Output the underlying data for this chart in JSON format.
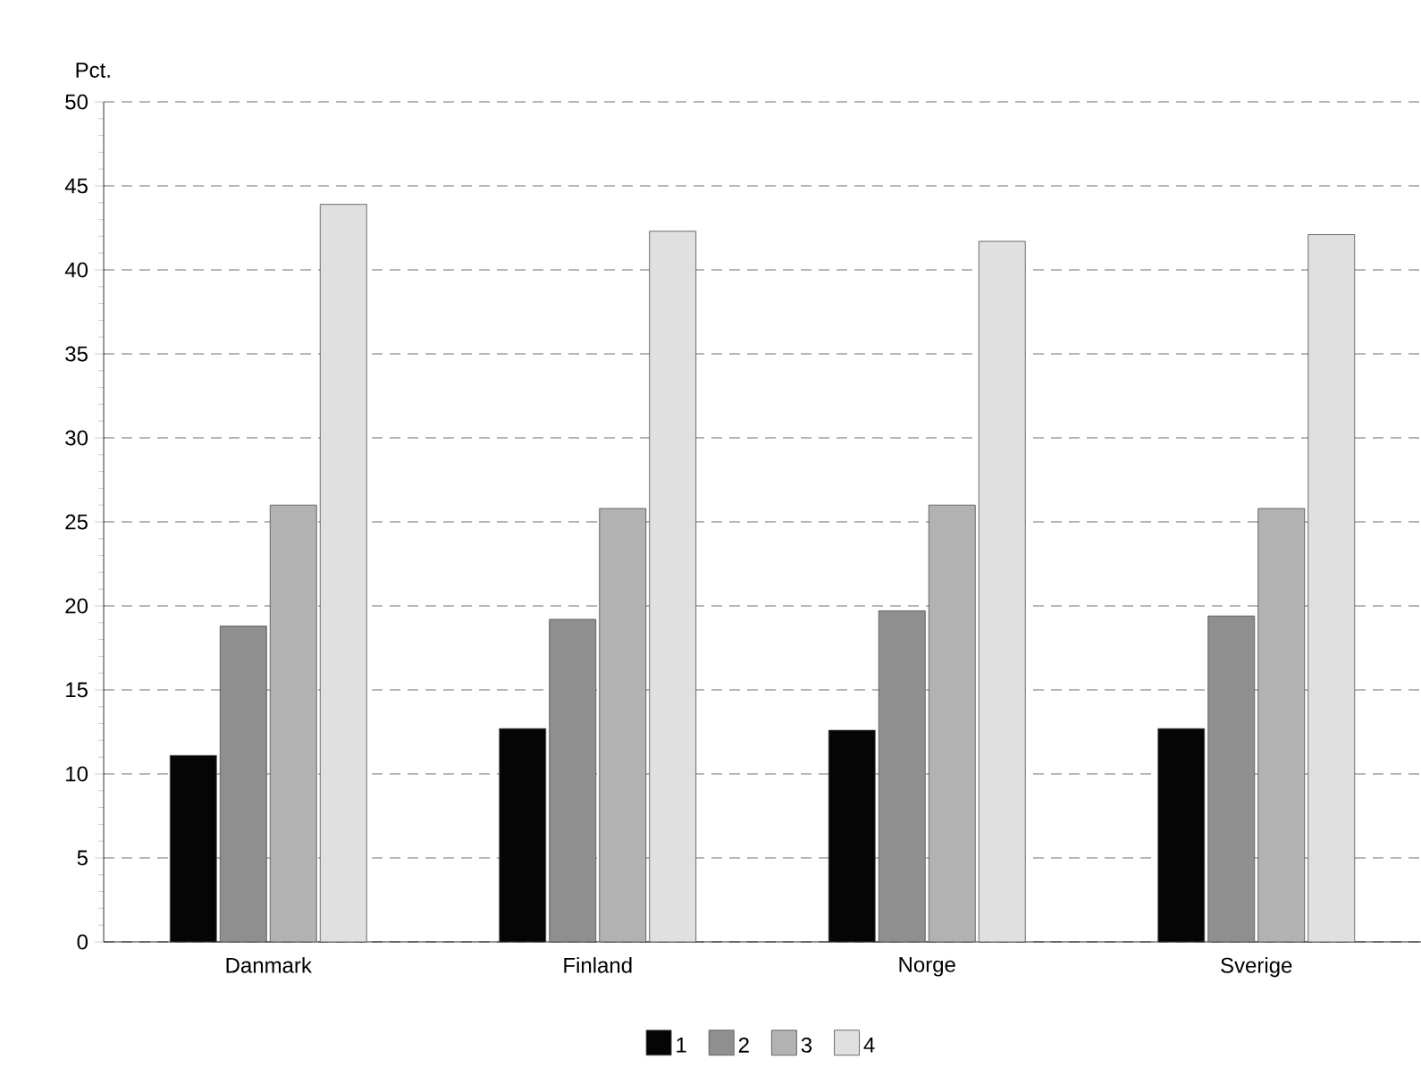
{
  "chart_data": {
    "type": "bar",
    "ylabel": "Pct.",
    "categories": [
      "Danmark",
      "Finland",
      "Norge",
      "Sverige"
    ],
    "series": [
      {
        "name": "1",
        "color": "#050505",
        "values": [
          11.1,
          12.7,
          12.6,
          12.7
        ]
      },
      {
        "name": "2",
        "color": "#8f8f8f",
        "values": [
          18.8,
          19.2,
          19.7,
          19.4
        ]
      },
      {
        "name": "3",
        "color": "#b2b2b2",
        "values": [
          26.0,
          25.8,
          26.0,
          25.8
        ]
      },
      {
        "name": "4",
        "color": "#e0e0e0",
        "values": [
          43.9,
          42.3,
          41.7,
          42.1
        ]
      }
    ],
    "ylim": [
      0,
      50
    ],
    "yticks": [
      0,
      5,
      10,
      15,
      20,
      25,
      30,
      35,
      40,
      45,
      50
    ],
    "grid": "y",
    "legend": "bottom"
  }
}
